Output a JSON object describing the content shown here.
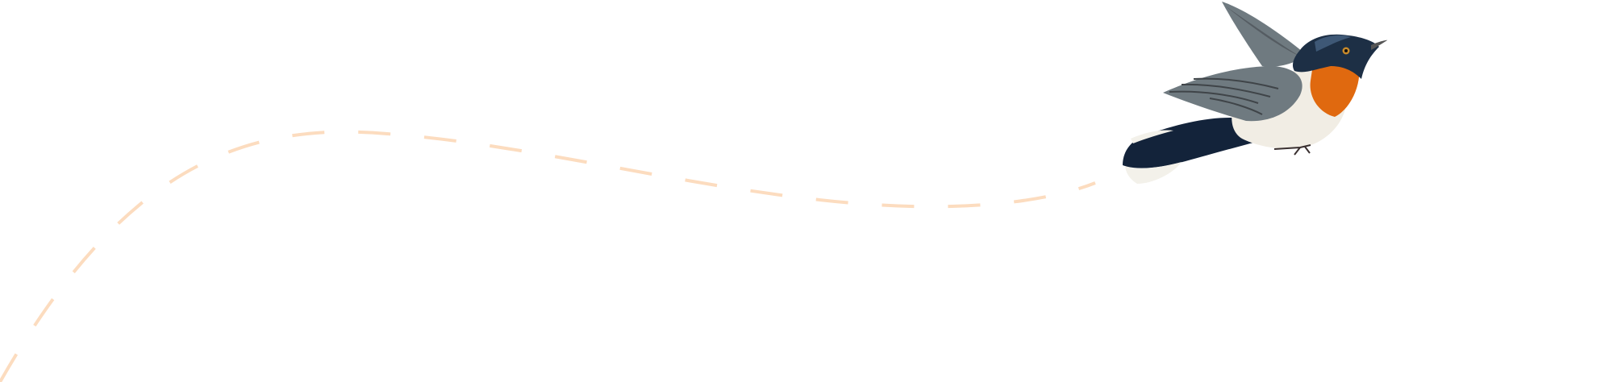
{
  "scene": {
    "background_color": "#ffffff",
    "flight_path": {
      "style": "dashed",
      "color": "#fcdcbf"
    },
    "bird": {
      "icon": "flying-bird-illustration",
      "colors": {
        "head": "#1d2f45",
        "head_highlight": "#4d6a8c",
        "throat": "#e0690f",
        "belly": "#f1ede4",
        "wing": "#6f7a80",
        "wing_dark": "#3f4448",
        "tail": "#13233a",
        "tail_tips": "#f3f1ea",
        "beak": "#555555",
        "eye": "#c98a2a"
      }
    }
  }
}
